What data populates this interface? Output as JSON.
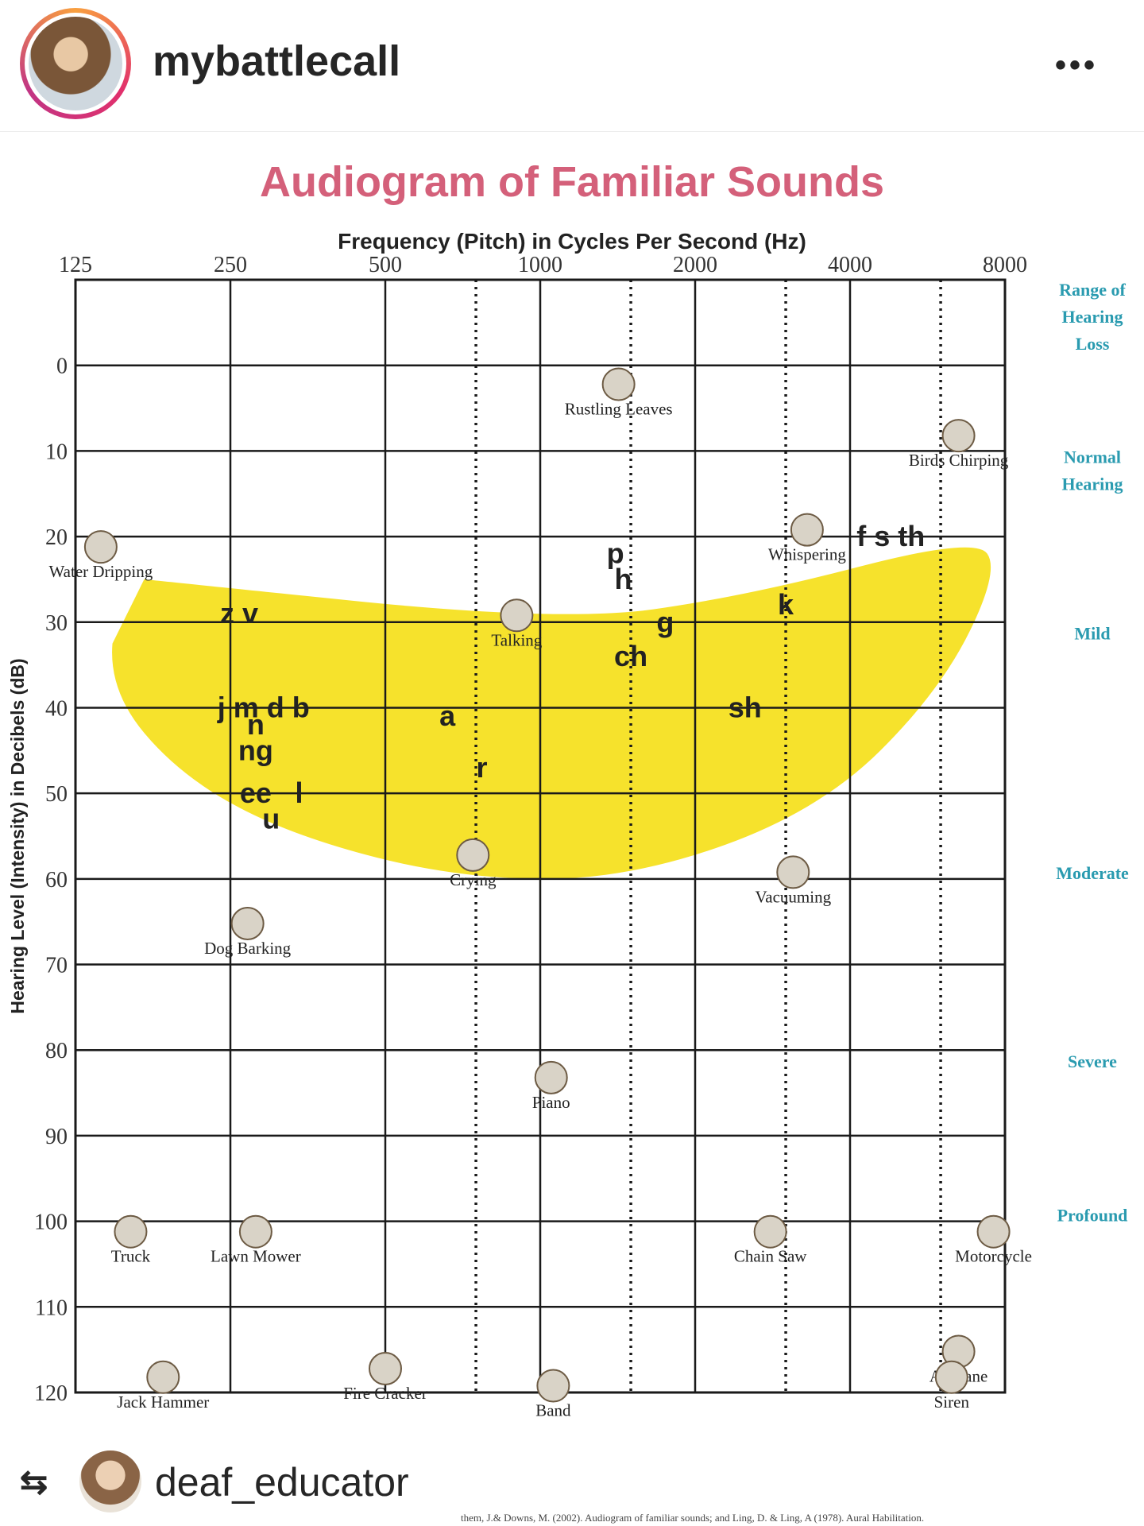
{
  "post": {
    "username": "mybattlecall",
    "more_label": "•••",
    "repost_username": "deaf_educator",
    "citation": "them, J.& Downs, M. (2002). Audiogram of familiar sounds; and Ling, D. & Ling, A (1978). Aural Habilitation."
  },
  "icons": {
    "more": "more-horizontal-icon",
    "repost": "repost-icon",
    "avatar": "profile-avatar"
  },
  "colors": {
    "title": "#d4607a",
    "speech_banana": "#f6e22c",
    "severity_labels": "#2a9bb0",
    "grid": "#1a1a1a"
  },
  "chart_data": {
    "type": "scatter",
    "title": "Audiogram of Familiar Sounds",
    "xlabel": "Frequency (Pitch) in Cycles Per Second (Hz)",
    "ylabel": "Hearing Level (Intensity) in Decibels (dB)",
    "x_scale": "log2",
    "x_ticks": [
      125,
      250,
      500,
      1000,
      2000,
      4000,
      8000
    ],
    "x_tick_labels": [
      "125",
      "250",
      "500",
      "1000",
      "2000",
      "4000",
      "8000"
    ],
    "xlim": [
      125,
      8000
    ],
    "y_ticks": [
      0,
      10,
      20,
      30,
      40,
      50,
      60,
      70,
      80,
      90,
      100,
      110,
      120
    ],
    "ylim": [
      -10,
      120
    ],
    "y_inverted": true,
    "grid": true,
    "dotted_gridlines_hz": [
      750,
      1500,
      3000,
      6000
    ],
    "severity_ranges": [
      {
        "label": "Range of Hearing Loss",
        "y": -5
      },
      {
        "label": "Normal Hearing",
        "y": 13
      },
      {
        "label": "Mild",
        "y": 32
      },
      {
        "label": "Moderate",
        "y": 60
      },
      {
        "label": "Severe",
        "y": 82
      },
      {
        "label": "Profound",
        "y": 100
      }
    ],
    "sounds": [
      {
        "label": "Water Dripping",
        "hz": 140,
        "db": 24
      },
      {
        "label": "Rustling Leaves",
        "hz": 1420,
        "db": 5
      },
      {
        "label": "Birds Chirping",
        "hz": 6500,
        "db": 11
      },
      {
        "label": "Whispering",
        "hz": 3300,
        "db": 22
      },
      {
        "label": "Talking",
        "hz": 900,
        "db": 32
      },
      {
        "label": "Crying",
        "hz": 740,
        "db": 60
      },
      {
        "label": "Vacuuming",
        "hz": 3100,
        "db": 62
      },
      {
        "label": "Dog Barking",
        "hz": 270,
        "db": 68
      },
      {
        "label": "Piano",
        "hz": 1050,
        "db": 86
      },
      {
        "label": "Truck",
        "hz": 160,
        "db": 104
      },
      {
        "label": "Lawn Mower",
        "hz": 280,
        "db": 104
      },
      {
        "label": "Chain Saw",
        "hz": 2800,
        "db": 104
      },
      {
        "label": "Motorcycle",
        "hz": 7600,
        "db": 104
      },
      {
        "label": "Band",
        "hz": 1060,
        "db": 122
      },
      {
        "label": "Jack Hammer",
        "hz": 185,
        "db": 121
      },
      {
        "label": "Fire Cracker",
        "hz": 500,
        "db": 120
      },
      {
        "label": "Airplane",
        "hz": 6500,
        "db": 118
      },
      {
        "label": "Siren",
        "hz": 6300,
        "db": 121
      }
    ],
    "speech_sounds": [
      {
        "label": "z v",
        "hz": 260,
        "db": 29
      },
      {
        "label": "j m d b",
        "hz": 290,
        "db": 40
      },
      {
        "label": "n",
        "hz": 280,
        "db": 42
      },
      {
        "label": "ng",
        "hz": 280,
        "db": 45
      },
      {
        "label": "ee",
        "hz": 280,
        "db": 50
      },
      {
        "label": "l",
        "hz": 340,
        "db": 50
      },
      {
        "label": "u",
        "hz": 300,
        "db": 53
      },
      {
        "label": "a",
        "hz": 660,
        "db": 41
      },
      {
        "label": "r",
        "hz": 770,
        "db": 47
      },
      {
        "label": "p",
        "hz": 1400,
        "db": 22
      },
      {
        "label": "h",
        "hz": 1450,
        "db": 25
      },
      {
        "label": "g",
        "hz": 1750,
        "db": 30
      },
      {
        "label": "ch",
        "hz": 1500,
        "db": 34
      },
      {
        "label": "k",
        "hz": 3000,
        "db": 28
      },
      {
        "label": "sh",
        "hz": 2500,
        "db": 40
      },
      {
        "label": "f s th",
        "hz": 4800,
        "db": 20
      }
    ]
  }
}
